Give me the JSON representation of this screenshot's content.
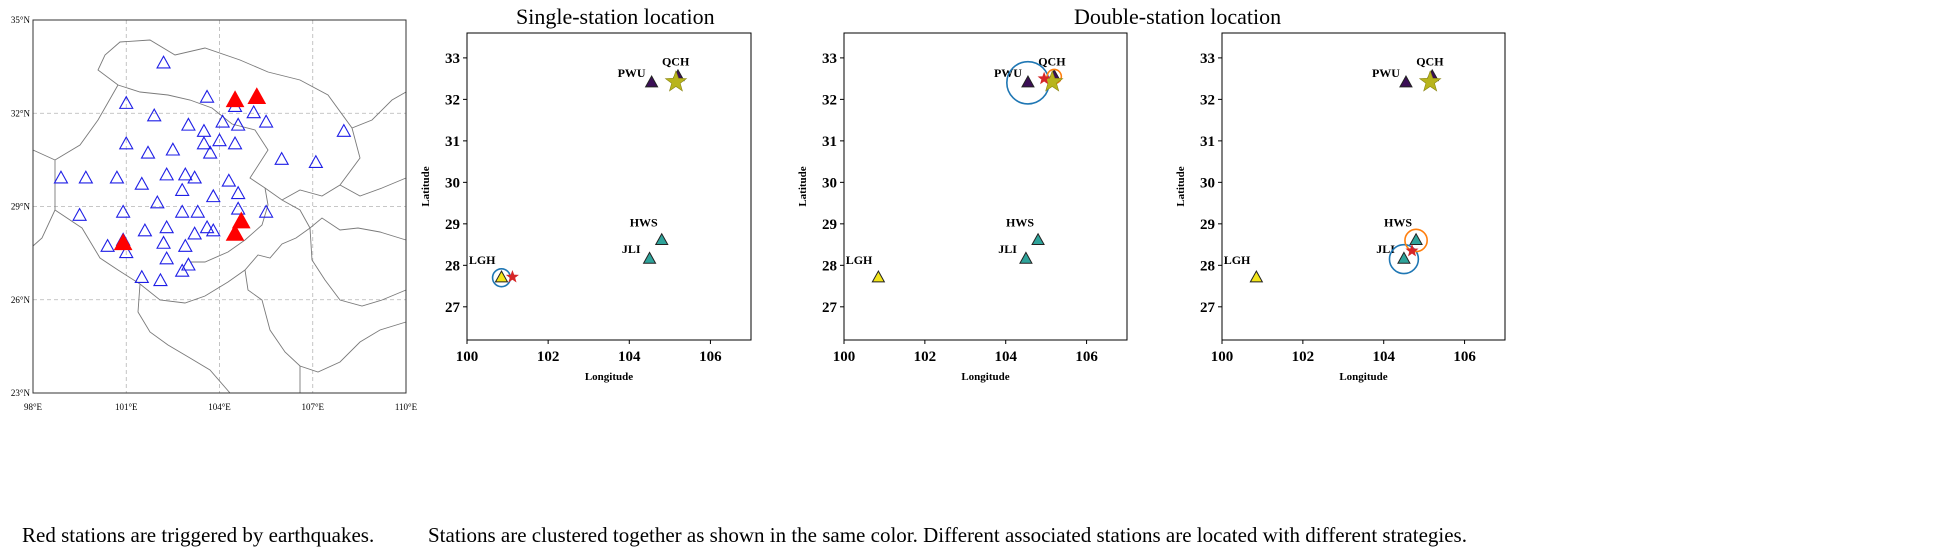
{
  "figure": {
    "map_caption": "Red stations are triggered by earthquakes.",
    "panels_caption": "Stations are clustered together as shown in the same color. Different associated stations are located with different strategies.",
    "single_title": "Single-station location",
    "double_title": "Double-station location"
  },
  "colors": {
    "trigger_red": "#ff0000",
    "station_blue": "#1f1fe6",
    "cluster_purple": "#3b0f56",
    "cluster_teal": "#2ea39a",
    "cluster_yellow": "#f3e51a",
    "star_olive": "#b8b41c",
    "circle_blue": "#1f77b4",
    "circle_orange": "#ff7f0e",
    "event_star_red": "#d62728"
  },
  "chart_data": [
    {
      "type": "scatter",
      "title": "",
      "xlabel": "",
      "ylabel": "",
      "xlim": [
        98,
        110
      ],
      "ylim": [
        23,
        35
      ],
      "xticks": [
        98,
        101,
        104,
        107,
        110
      ],
      "xtick_labels": [
        "98°E",
        "101°E",
        "104°E",
        "107°E",
        "110°E"
      ],
      "yticks": [
        23,
        26,
        29,
        32,
        35
      ],
      "ytick_labels": [
        "23°N",
        "26°N",
        "29°N",
        "32°N",
        "35°N"
      ],
      "grid": true,
      "series": [
        {
          "marker": "open-triangle",
          "color": "#1f1fe6",
          "points": [
            [
              102.2,
              33.6
            ],
            [
              101.0,
              32.3
            ],
            [
              101.9,
              31.9
            ],
            [
              103.6,
              32.5
            ],
            [
              104.5,
              32.2
            ],
            [
              105.1,
              32.0
            ],
            [
              105.5,
              31.7
            ],
            [
              103.0,
              31.6
            ],
            [
              103.5,
              31.4
            ],
            [
              104.1,
              31.7
            ],
            [
              104.6,
              31.6
            ],
            [
              103.5,
              31.0
            ],
            [
              104.0,
              31.1
            ],
            [
              104.5,
              31.0
            ],
            [
              101.0,
              31.0
            ],
            [
              101.7,
              30.7
            ],
            [
              102.5,
              30.8
            ],
            [
              103.7,
              30.7
            ],
            [
              106.0,
              30.5
            ],
            [
              107.1,
              30.4
            ],
            [
              108.0,
              31.4
            ],
            [
              98.9,
              29.9
            ],
            [
              99.7,
              29.9
            ],
            [
              100.7,
              29.9
            ],
            [
              101.5,
              29.7
            ],
            [
              102.3,
              30.0
            ],
            [
              102.9,
              30.0
            ],
            [
              103.2,
              29.9
            ],
            [
              104.3,
              29.8
            ],
            [
              102.8,
              29.5
            ],
            [
              103.8,
              29.3
            ],
            [
              104.6,
              29.4
            ],
            [
              102.0,
              29.1
            ],
            [
              99.5,
              28.7
            ],
            [
              100.9,
              28.8
            ],
            [
              102.8,
              28.8
            ],
            [
              103.3,
              28.8
            ],
            [
              104.6,
              28.9
            ],
            [
              105.5,
              28.8
            ],
            [
              101.6,
              28.2
            ],
            [
              102.3,
              28.3
            ],
            [
              103.2,
              28.1
            ],
            [
              103.6,
              28.3
            ],
            [
              102.2,
              27.8
            ],
            [
              102.9,
              27.7
            ],
            [
              100.4,
              27.7
            ],
            [
              101.0,
              27.5
            ],
            [
              102.3,
              27.3
            ],
            [
              103.0,
              27.1
            ],
            [
              101.5,
              26.7
            ],
            [
              102.1,
              26.6
            ],
            [
              102.8,
              26.9
            ],
            [
              103.8,
              28.2
            ],
            [
              100.9,
              27.9
            ]
          ]
        },
        {
          "marker": "filled-triangle",
          "color": "#ff0000",
          "points": [
            [
              104.5,
              32.4
            ],
            [
              105.2,
              32.5
            ],
            [
              104.7,
              28.5
            ],
            [
              104.5,
              28.1
            ],
            [
              100.9,
              27.8
            ]
          ]
        }
      ]
    },
    {
      "type": "scatter",
      "title": "Single-station location",
      "xlabel": "Longitude",
      "ylabel": "Latitude",
      "xlim": [
        100,
        107
      ],
      "ylim": [
        26.2,
        33.6
      ],
      "xticks": [
        100,
        102,
        104,
        106
      ],
      "yticks": [
        27,
        28,
        29,
        30,
        31,
        32,
        33
      ],
      "stations": [
        {
          "name": "QCH",
          "lon": 105.2,
          "lat": 32.55,
          "color": "#3b0f56"
        },
        {
          "name": "PWU",
          "lon": 104.55,
          "lat": 32.4,
          "color": "#3b0f56"
        },
        {
          "name": "HWS",
          "lon": 104.8,
          "lat": 28.6,
          "color": "#2ea39a"
        },
        {
          "name": "JLI",
          "lon": 104.5,
          "lat": 28.15,
          "color": "#2ea39a"
        },
        {
          "name": "LGH",
          "lon": 100.85,
          "lat": 27.7,
          "color": "#f3e51a"
        }
      ],
      "stars": [
        {
          "lon": 105.15,
          "lat": 32.42,
          "color": "#b8b41c",
          "size": "large"
        },
        {
          "lon": 101.12,
          "lat": 27.72,
          "color": "#d62728",
          "size": "small"
        }
      ],
      "circles": [
        {
          "lon": 100.85,
          "lat": 27.7,
          "radius_deg": 0.4,
          "color": "#1f77b4"
        }
      ]
    },
    {
      "type": "scatter",
      "title": "Double-station location",
      "xlabel": "Longitude",
      "ylabel": "Latitude",
      "xlim": [
        100,
        107
      ],
      "ylim": [
        26.2,
        33.6
      ],
      "xticks": [
        100,
        102,
        104,
        106
      ],
      "yticks": [
        27,
        28,
        29,
        30,
        31,
        32,
        33
      ],
      "stations": [
        {
          "name": "QCH",
          "lon": 105.2,
          "lat": 32.55,
          "color": "#3b0f56"
        },
        {
          "name": "PWU",
          "lon": 104.55,
          "lat": 32.4,
          "color": "#3b0f56"
        },
        {
          "name": "HWS",
          "lon": 104.8,
          "lat": 28.6,
          "color": "#2ea39a"
        },
        {
          "name": "JLI",
          "lon": 104.5,
          "lat": 28.15,
          "color": "#2ea39a"
        },
        {
          "name": "LGH",
          "lon": 100.85,
          "lat": 27.7,
          "color": "#f3e51a"
        }
      ],
      "stars": [
        {
          "lon": 105.15,
          "lat": 32.42,
          "color": "#b8b41c",
          "size": "large"
        },
        {
          "lon": 104.95,
          "lat": 32.5,
          "color": "#d62728",
          "size": "small"
        }
      ],
      "circles": [
        {
          "lon": 104.55,
          "lat": 32.4,
          "radius_deg": 0.95,
          "color": "#1f77b4"
        },
        {
          "lon": 105.2,
          "lat": 32.55,
          "radius_deg": 0.32,
          "color": "#ff7f0e"
        }
      ]
    },
    {
      "type": "scatter",
      "title": "",
      "xlabel": "Longitude",
      "ylabel": "Latitude",
      "xlim": [
        100,
        107
      ],
      "ylim": [
        26.2,
        33.6
      ],
      "xticks": [
        100,
        102,
        104,
        106
      ],
      "yticks": [
        27,
        28,
        29,
        30,
        31,
        32,
        33
      ],
      "stations": [
        {
          "name": "QCH",
          "lon": 105.2,
          "lat": 32.55,
          "color": "#3b0f56"
        },
        {
          "name": "PWU",
          "lon": 104.55,
          "lat": 32.4,
          "color": "#3b0f56"
        },
        {
          "name": "HWS",
          "lon": 104.8,
          "lat": 28.6,
          "color": "#2ea39a"
        },
        {
          "name": "JLI",
          "lon": 104.5,
          "lat": 28.15,
          "color": "#2ea39a"
        },
        {
          "name": "LGH",
          "lon": 100.85,
          "lat": 27.7,
          "color": "#f3e51a"
        }
      ],
      "stars": [
        {
          "lon": 105.15,
          "lat": 32.42,
          "color": "#b8b41c",
          "size": "large"
        },
        {
          "lon": 104.7,
          "lat": 28.35,
          "color": "#d62728",
          "size": "small"
        }
      ],
      "circles": [
        {
          "lon": 104.5,
          "lat": 28.15,
          "radius_deg": 0.65,
          "color": "#1f77b4"
        },
        {
          "lon": 104.8,
          "lat": 28.6,
          "radius_deg": 0.5,
          "color": "#ff7f0e"
        }
      ]
    }
  ]
}
